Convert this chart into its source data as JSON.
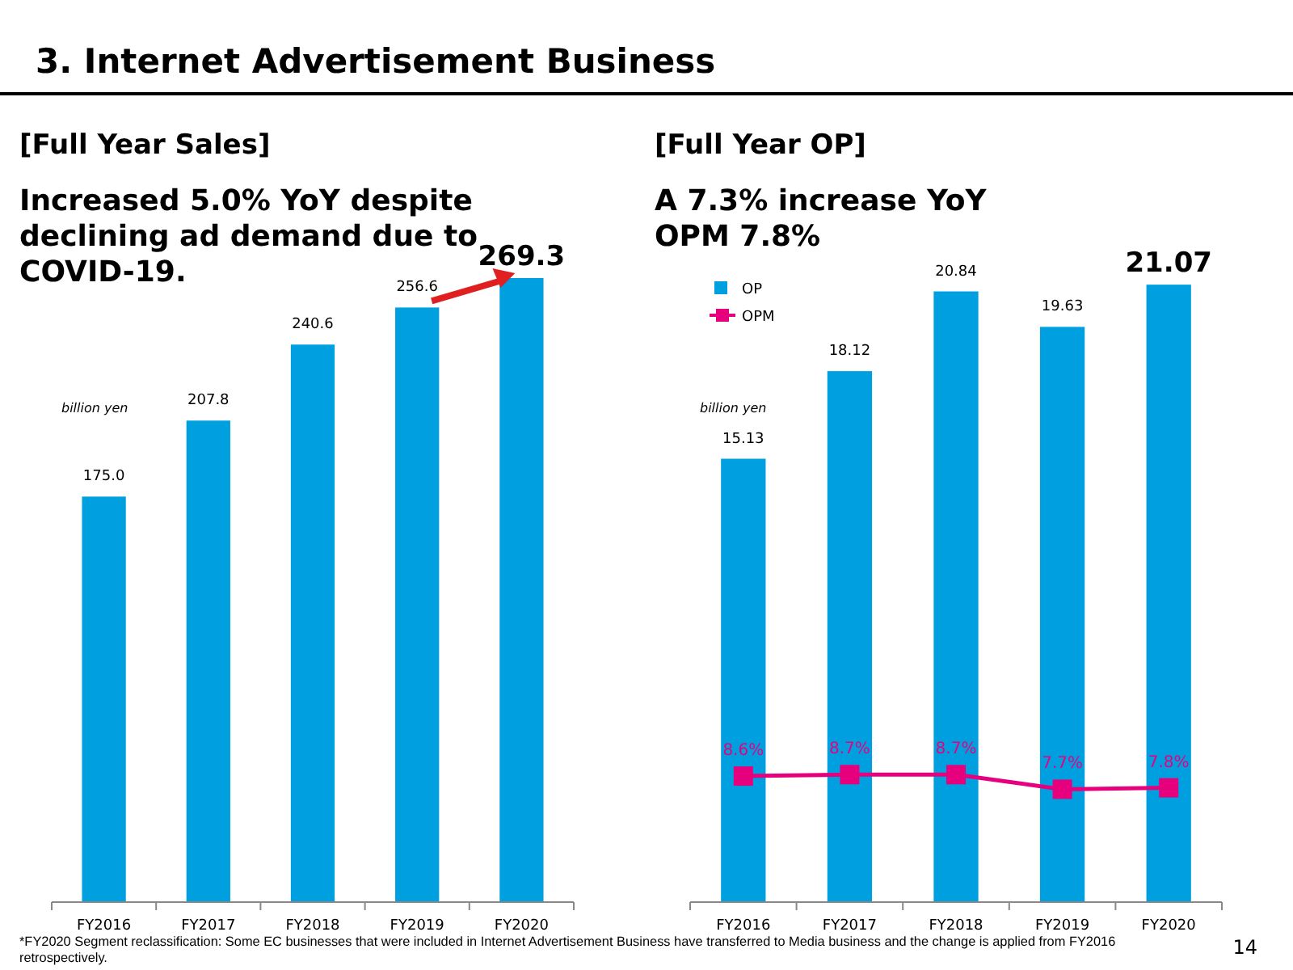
{
  "chart_data": [
    {
      "type": "bar",
      "title": "[Full Year Sales]",
      "subtitle": "Increased 5.0% YoY despite\ndeclining ad demand due to\nCOVID-19.",
      "categories": [
        "FY2016",
        "FY2017",
        "FY2018",
        "FY2019",
        "FY2020"
      ],
      "series": [
        {
          "color": "#00a0e0",
          "values": [
            175.0,
            207.8,
            240.6,
            256.6,
            269.3
          ],
          "value_labels": [
            "175.0",
            "207.8",
            "240.6",
            "256.6",
            "269.3"
          ]
        }
      ],
      "tick_labels": "x",
      "annotations": [
        "3. Internet Advertisement Business",
        "billion yen",
        "*FY2020 Segment reclassification: Some EC businesses that were included in Internet Advertisement Business have transferred to Media business and the change is applied from FY2016\nretrospectively.",
        "14"
      ]
    },
    {
      "type": "bar",
      "title": "[Full Year OP]",
      "subtitle": "A 7.3% increase YoY\nOPM 7.8%",
      "categories": [
        "FY2016",
        "FY2017",
        "FY2018",
        "FY2019",
        "FY2020"
      ],
      "series": [
        {
          "name": "OP",
          "color": "#00a0e0",
          "values": [
            15.13,
            18.12,
            20.84,
            19.63,
            21.07
          ]
        },
        {
          "name": "OPM",
          "type": "line",
          "axis": "y2",
          "color": "#e6007e",
          "marker": "square",
          "values": [
            8.6,
            8.7,
            8.7,
            7.7,
            7.8
          ],
          "value_labels": [
            "8.6%",
            "8.7%",
            "8.7%",
            "7.7%",
            "7.8%"
          ]
        }
      ],
      "tick_labels": "x",
      "data_labels": true,
      "legend": "top left",
      "annotations": [
        "billion yen"
      ]
    }
  ]
}
